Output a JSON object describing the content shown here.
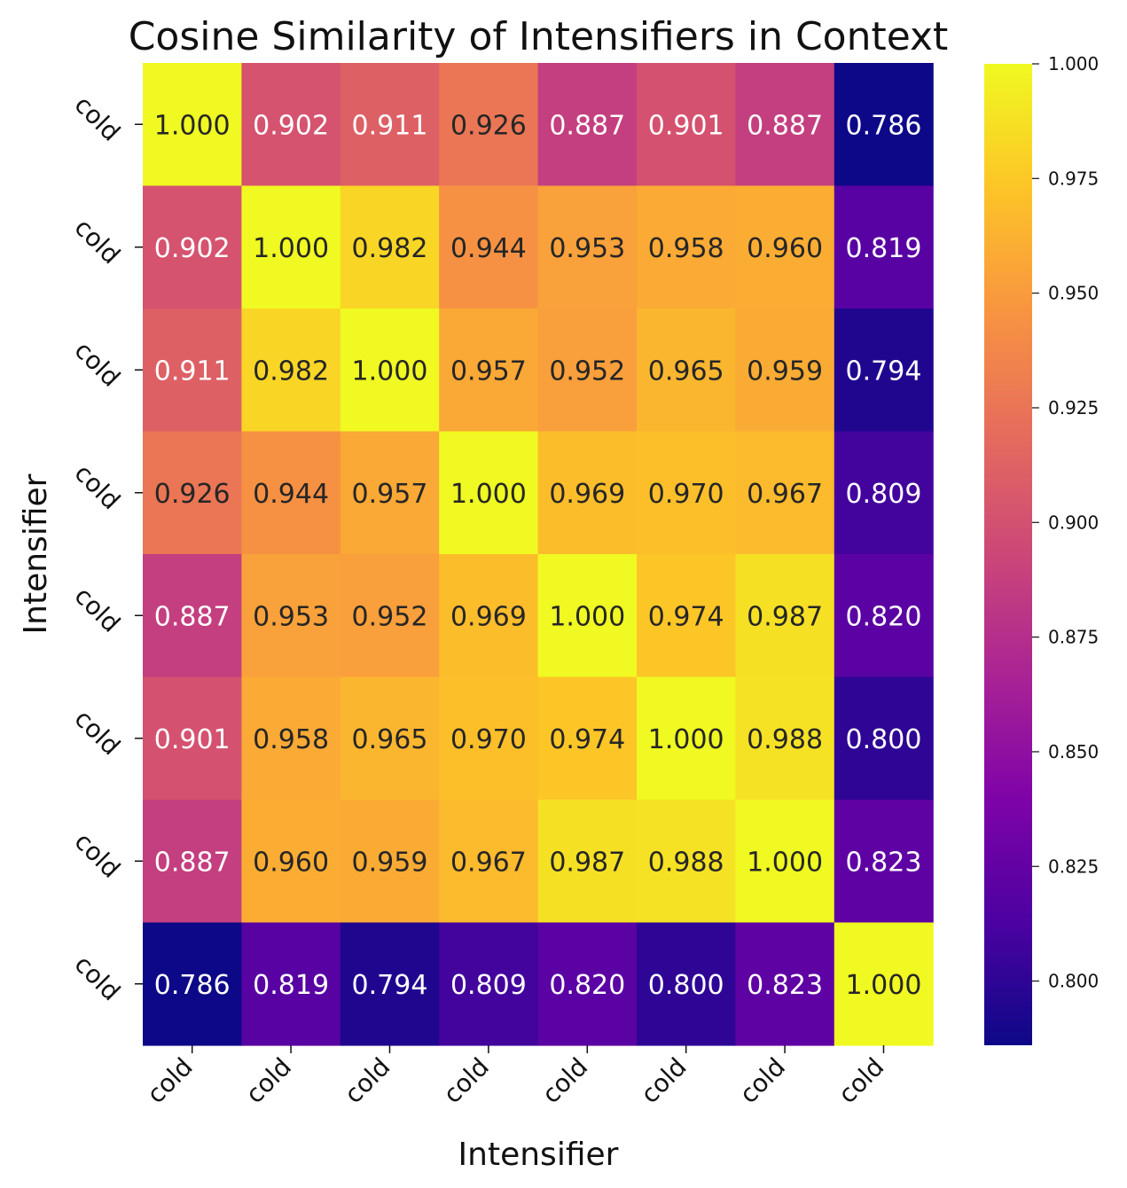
{
  "chart_data": {
    "type": "heatmap",
    "title": "Cosine Similarity of Intensifiers in Context",
    "xlabel": "Intensifier",
    "ylabel": "Intensifier",
    "x_categories": [
      "cold",
      "cold",
      "cold",
      "cold",
      "cold",
      "cold",
      "cold",
      "cold"
    ],
    "y_categories": [
      "cold",
      "cold",
      "cold",
      "cold",
      "cold",
      "cold",
      "cold",
      "cold"
    ],
    "values": [
      [
        1.0,
        0.902,
        0.911,
        0.926,
        0.887,
        0.901,
        0.887,
        0.786
      ],
      [
        0.902,
        1.0,
        0.982,
        0.944,
        0.953,
        0.958,
        0.96,
        0.819
      ],
      [
        0.911,
        0.982,
        1.0,
        0.957,
        0.952,
        0.965,
        0.959,
        0.794
      ],
      [
        0.926,
        0.944,
        0.957,
        1.0,
        0.969,
        0.97,
        0.967,
        0.809
      ],
      [
        0.887,
        0.953,
        0.952,
        0.969,
        1.0,
        0.974,
        0.987,
        0.82
      ],
      [
        0.901,
        0.958,
        0.965,
        0.97,
        0.974,
        1.0,
        0.988,
        0.8
      ],
      [
        0.887,
        0.96,
        0.959,
        0.967,
        0.987,
        0.988,
        1.0,
        0.823
      ],
      [
        0.786,
        0.819,
        0.794,
        0.809,
        0.82,
        0.8,
        0.823,
        1.0
      ]
    ],
    "value_format": "0.000",
    "colormap": "plasma",
    "vmin": 0.786,
    "vmax": 1.0,
    "colorbar_ticks": [
      "1.000",
      "0.975",
      "0.950",
      "0.925",
      "0.900",
      "0.875",
      "0.850",
      "0.825",
      "0.800"
    ],
    "colorbar_tick_values": [
      1.0,
      0.975,
      0.95,
      0.925,
      0.9,
      0.875,
      0.85,
      0.825,
      0.8
    ],
    "text_color_dark": "#262626",
    "text_color_light": "#ffffff"
  }
}
